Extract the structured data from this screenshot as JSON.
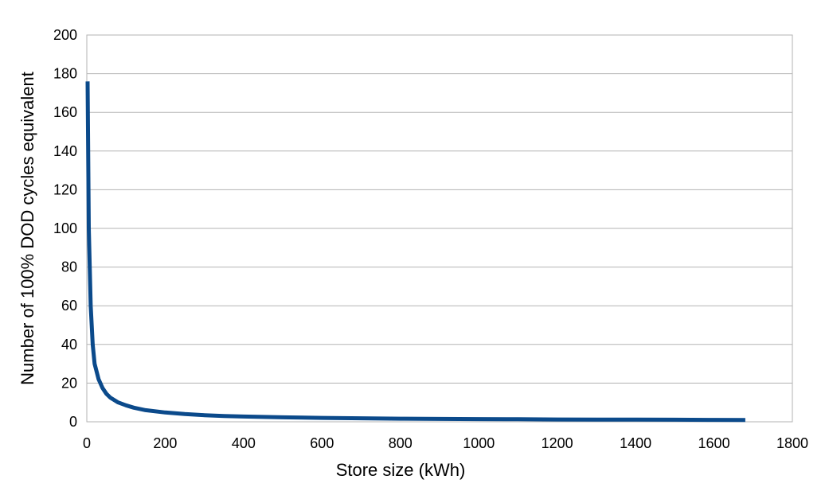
{
  "chart_data": {
    "type": "line",
    "title": "",
    "xlabel": "Store size (kWh)",
    "ylabel": "Number of 100% DOD cycles equivalent",
    "xlim": [
      0,
      1800
    ],
    "ylim": [
      0,
      200
    ],
    "xticks": [
      0,
      200,
      400,
      600,
      800,
      1000,
      1200,
      1400,
      1600,
      1800
    ],
    "yticks": [
      0,
      20,
      40,
      60,
      80,
      100,
      120,
      140,
      160,
      180,
      200
    ],
    "grid": "horizontal",
    "legend": "none",
    "series": [
      {
        "color": "#0b4a8b",
        "x": [
          2,
          5,
          10,
          15,
          20,
          30,
          40,
          50,
          60,
          80,
          100,
          120,
          150,
          200,
          250,
          300,
          350,
          400,
          450,
          500,
          600,
          700,
          800,
          900,
          1000,
          1100,
          1200,
          1300,
          1400,
          1500,
          1600,
          1680
        ],
        "y": [
          176,
          100,
          60,
          40,
          30,
          22,
          17.5,
          14.5,
          12.5,
          10,
          8.5,
          7.3,
          6,
          4.8,
          4,
          3.4,
          3,
          2.7,
          2.5,
          2.3,
          2,
          1.8,
          1.6,
          1.5,
          1.4,
          1.3,
          1.2,
          1.15,
          1.1,
          1.05,
          1.0,
          0.9
        ]
      }
    ]
  }
}
